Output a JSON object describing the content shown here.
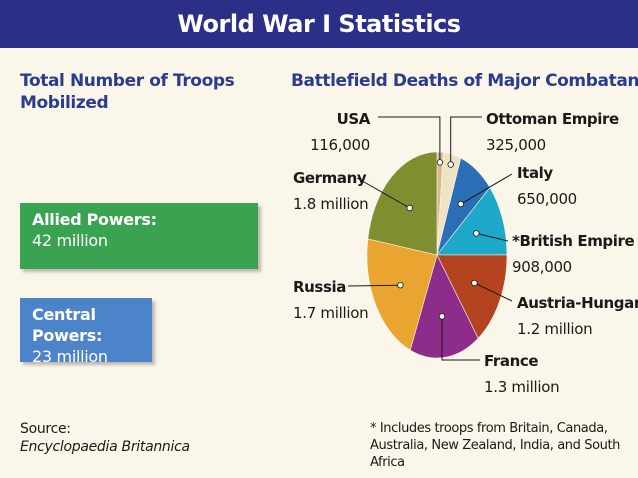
{
  "header": {
    "title": "World War I Statistics"
  },
  "troops": {
    "title": "Total Number of Troops Mobilized",
    "allied": {
      "label": "Allied Powers:",
      "value": "42 million",
      "color": "#3aa351"
    },
    "central": {
      "label": "Central Powers:",
      "value": "23 million",
      "color": "#4d84c9"
    }
  },
  "source": {
    "label": "Source:",
    "reference": "Encyclopaedia Britannica"
  },
  "footnote": "* Includes troops from Britain, Canada, Australia, New Zealand, India, and South Africa",
  "chart_data": {
    "type": "pie",
    "title": "Battlefield Deaths of Major Combatants",
    "slices": [
      {
        "name": "USA",
        "label": "116,000",
        "value": 116000,
        "color": "#d9b98c"
      },
      {
        "name": "Ottoman Empire",
        "label": "325,000",
        "value": 325000,
        "color": "#efe3c4"
      },
      {
        "name": "Italy",
        "label": "650,000",
        "value": 650000,
        "color": "#2a6fb6"
      },
      {
        "name": "*British Empire",
        "label": "908,000",
        "value": 908000,
        "color": "#1ea8c9"
      },
      {
        "name": "Austria-Hungary",
        "label": "1.2 million",
        "value": 1200000,
        "color": "#b4441f"
      },
      {
        "name": "France",
        "label": "1.3 million",
        "value": 1300000,
        "color": "#8e2c8c"
      },
      {
        "name": "Russia",
        "label": "1.7 million",
        "value": 1700000,
        "color": "#eaa531"
      },
      {
        "name": "Germany",
        "label": "1.8 million",
        "value": 1800000,
        "color": "#7f8f30"
      }
    ]
  }
}
